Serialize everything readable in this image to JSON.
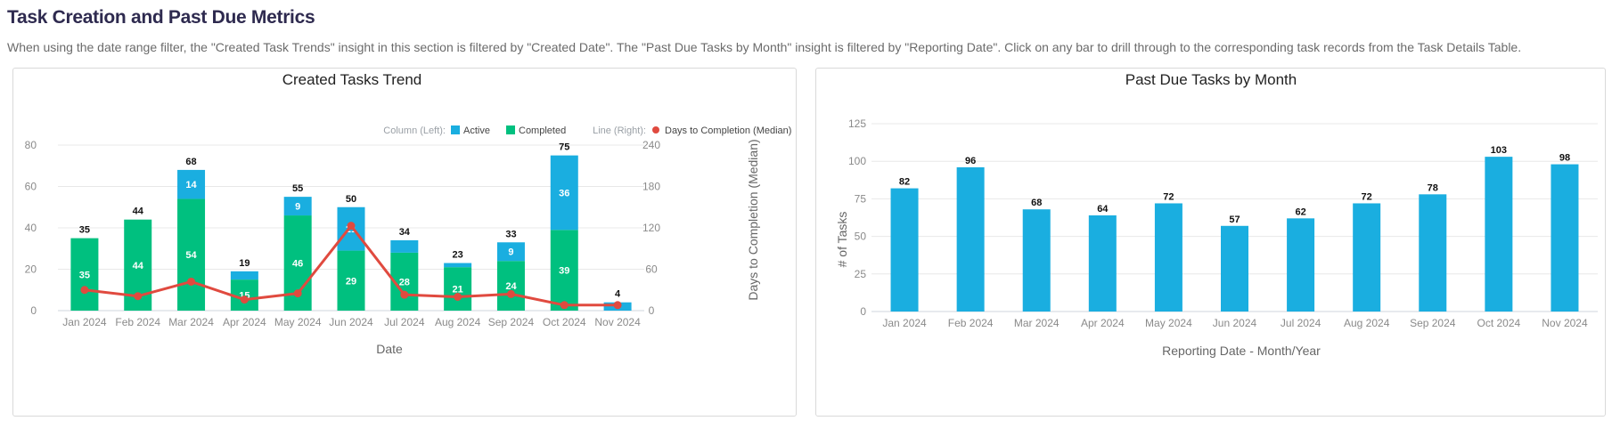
{
  "section": {
    "title": "Task Creation and Past Due Metrics",
    "description": "When using the date range filter, the \"Created Task Trends\" insight in this section is filtered by \"Created Date\". The \"Past Due Tasks by Month\" insight is filtered by \"Reporting Date\". Click on any bar to drill through to the corresponding task records from the Task Details Table."
  },
  "colors": {
    "active": "#1aaee0",
    "completed": "#00c07f",
    "median_line": "#e04a3f",
    "past_due": "#1aaee0"
  },
  "chart_data": [
    {
      "type": "bar",
      "stacked": true,
      "title": "Created Tasks Trend",
      "xlabel": "Date",
      "ylabel": "",
      "y2label": "Days to Completion (Median)",
      "categories": [
        "Jan 2024",
        "Feb 2024",
        "Mar 2024",
        "Apr 2024",
        "May 2024",
        "Jun 2024",
        "Jul 2024",
        "Aug 2024",
        "Sep 2024",
        "Oct 2024",
        "Nov 2024"
      ],
      "series": [
        {
          "name": "Completed",
          "axis": "left",
          "values": [
            35,
            44,
            54,
            15,
            46,
            29,
            28,
            21,
            24,
            39,
            0
          ]
        },
        {
          "name": "Active",
          "axis": "left",
          "values": [
            0,
            0,
            14,
            4,
            9,
            21,
            6,
            2,
            9,
            36,
            4
          ]
        },
        {
          "name": "Days to Completion (Median)",
          "axis": "right",
          "type": "line",
          "values": [
            30,
            21,
            42,
            16,
            25,
            123,
            23,
            20,
            24,
            8,
            8
          ]
        }
      ],
      "totals": [
        35,
        44,
        68,
        19,
        55,
        50,
        34,
        23,
        33,
        75,
        4
      ],
      "inner_labels": {
        "Completed": [
          "35",
          "44",
          "54",
          "15",
          "46",
          "29",
          "28",
          "21",
          "24",
          "39",
          ""
        ],
        "Active": [
          "",
          "",
          "14",
          "",
          "9",
          "21",
          "",
          "",
          "9",
          "36",
          ""
        ]
      },
      "legend": {
        "column_label": "Column (Left):",
        "line_label": "Line (Right):",
        "items": [
          "Active",
          "Completed",
          "Days to Completion (Median)"
        ],
        "position": "top-right"
      },
      "yticks": [
        "0",
        "20",
        "40",
        "60",
        "80"
      ],
      "y2ticks": [
        "0",
        "60",
        "120",
        "180",
        "240"
      ],
      "ylim": [
        0,
        80
      ],
      "y2lim": [
        0,
        240
      ],
      "grid": true
    },
    {
      "type": "bar",
      "title": "Past Due Tasks by Month",
      "xlabel": "Reporting Date - Month/Year",
      "ylabel": "# of Tasks",
      "categories": [
        "Jan 2024",
        "Feb 2024",
        "Mar 2024",
        "Apr 2024",
        "May 2024",
        "Jun 2024",
        "Jul 2024",
        "Aug 2024",
        "Sep 2024",
        "Oct 2024",
        "Nov 2024"
      ],
      "values": [
        82,
        96,
        68,
        64,
        72,
        57,
        62,
        72,
        78,
        103,
        98
      ],
      "labels": [
        "82",
        "96",
        "68",
        "64",
        "72",
        "57",
        "62",
        "72",
        "78",
        "103",
        "98"
      ],
      "yticks": [
        "0",
        "25",
        "50",
        "75",
        "100",
        "125"
      ],
      "ylim": [
        0,
        125
      ],
      "grid": true
    }
  ]
}
